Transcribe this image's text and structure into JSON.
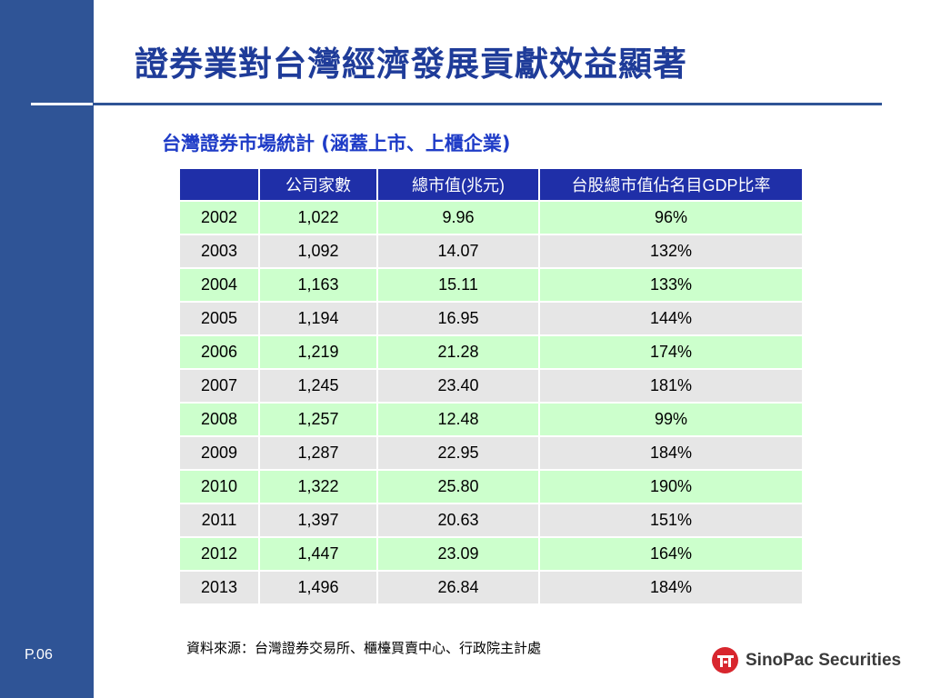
{
  "slide": {
    "title": "證券業對台灣經濟發展貢獻效益顯著",
    "page_number": "P.06"
  },
  "table": {
    "caption": "台灣證券市場統計 (涵蓋上市、上櫃企業)",
    "headers": [
      "",
      "公司家數",
      "總市值(兆元)",
      "台股總市值佔名目GDP比率"
    ],
    "rows": [
      [
        "2002",
        "1,022",
        "9.96",
        "96%"
      ],
      [
        "2003",
        "1,092",
        "14.07",
        "132%"
      ],
      [
        "2004",
        "1,163",
        "15.11",
        "133%"
      ],
      [
        "2005",
        "1,194",
        "16.95",
        "144%"
      ],
      [
        "2006",
        "1,219",
        "21.28",
        "174%"
      ],
      [
        "2007",
        "1,245",
        "23.40",
        "181%"
      ],
      [
        "2008",
        "1,257",
        "12.48",
        "99%"
      ],
      [
        "2009",
        "1,287",
        "22.95",
        "184%"
      ],
      [
        "2010",
        "1,322",
        "25.80",
        "190%"
      ],
      [
        "2011",
        "1,397",
        "20.63",
        "151%"
      ],
      [
        "2012",
        "1,447",
        "23.09",
        "164%"
      ],
      [
        "2013",
        "1,496",
        "26.84",
        "184%"
      ]
    ],
    "source": "資料來源：台灣證券交易所、櫃檯買賣中心、行政院主計處"
  },
  "logo": {
    "text": "SinoPac Securities",
    "icon": "sinopac-logo-icon",
    "color": "#d8262e"
  },
  "colors": {
    "sidebar": "#2f5496",
    "header_fill": "#1f2fa8",
    "row_green": "#ccffcc",
    "row_gray": "#e6e6e6"
  }
}
